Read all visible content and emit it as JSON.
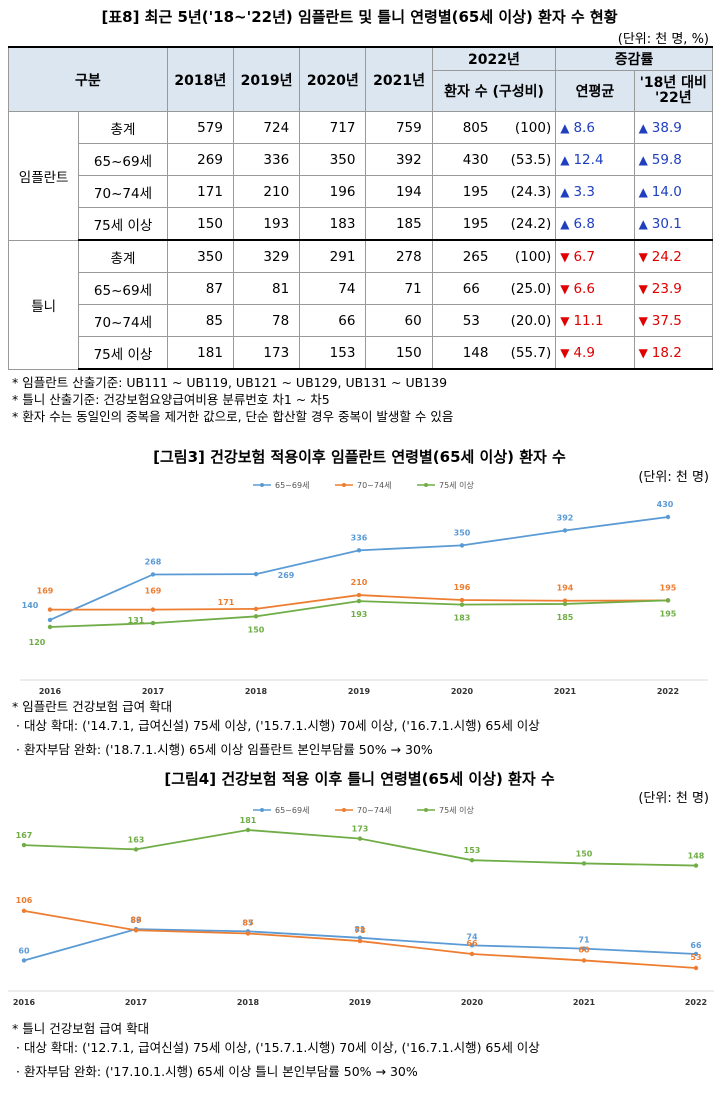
{
  "table": {
    "title": "[표8] 최근 5년('18~'22년) 임플란트 및 틀니 연령별(65세 이상) 환자 수 현황",
    "unit": "(단위: 천 명, %)",
    "headers": {
      "category": "구분",
      "y2018": "2018년",
      "y2019": "2019년",
      "y2020": "2020년",
      "y2021": "2021년",
      "y2022": "2022년",
      "patients": "환자 수 (구성비)",
      "change": "증감률",
      "annual": "연평균",
      "vs18": "'18년 대비 '22년"
    },
    "groups": [
      {
        "name": "임플란트",
        "rows": [
          {
            "label": "총계",
            "v2018": "579",
            "v2019": "724",
            "v2020": "717",
            "v2021": "759",
            "v2022": "805",
            "share": "(100)",
            "annual": "8.6",
            "vs18": "38.9",
            "dir": "up"
          },
          {
            "label": "65~69세",
            "v2018": "269",
            "v2019": "336",
            "v2020": "350",
            "v2021": "392",
            "v2022": "430",
            "share": "(53.5)",
            "annual": "12.4",
            "vs18": "59.8",
            "dir": "up"
          },
          {
            "label": "70~74세",
            "v2018": "171",
            "v2019": "210",
            "v2020": "196",
            "v2021": "194",
            "v2022": "195",
            "share": "(24.3)",
            "annual": "3.3",
            "vs18": "14.0",
            "dir": "up"
          },
          {
            "label": "75세 이상",
            "v2018": "150",
            "v2019": "193",
            "v2020": "183",
            "v2021": "185",
            "v2022": "195",
            "share": "(24.2)",
            "annual": "6.8",
            "vs18": "30.1",
            "dir": "up"
          }
        ]
      },
      {
        "name": "틀니",
        "rows": [
          {
            "label": "총계",
            "v2018": "350",
            "v2019": "329",
            "v2020": "291",
            "v2021": "278",
            "v2022": "265",
            "share": "(100)",
            "annual": "6.7",
            "vs18": "24.2",
            "dir": "down"
          },
          {
            "label": "65~69세",
            "v2018": "87",
            "v2019": "81",
            "v2020": "74",
            "v2021": "71",
            "v2022": "66",
            "share": "(25.0)",
            "annual": "6.6",
            "vs18": "23.9",
            "dir": "down"
          },
          {
            "label": "70~74세",
            "v2018": "85",
            "v2019": "78",
            "v2020": "66",
            "v2021": "60",
            "v2022": "53",
            "share": "(20.0)",
            "annual": "11.1",
            "vs18": "37.5",
            "dir": "down"
          },
          {
            "label": "75세 이상",
            "v2018": "181",
            "v2019": "173",
            "v2020": "153",
            "v2021": "150",
            "v2022": "148",
            "share": "(55.7)",
            "annual": "4.9",
            "vs18": "18.2",
            "dir": "down"
          }
        ]
      }
    ],
    "notes": [
      "* 임플란트 산출기준: UB111 ~ UB119, UB121 ~ UB129, UB131 ~ UB139",
      "* 틀니 산출기준: 건강보험요양급여비용 분류번호 차1 ~ 차5",
      "* 환자 수는 동일인의 중복을 제거한 값으로, 단순 합산할 경우 중복이 발생할 수 있음"
    ]
  },
  "figure3": {
    "title": "[그림3] 건강보험 적용이후 임플란트 연령별(65세 이상) 환자 수",
    "unit": "(단위: 천 명)",
    "notes": [
      "* 임플란트 건강보험 급여 확대",
      "· 대상 확대: ('14.7.1, 급여신설) 75세 이상, ('15.7.1.시행) 70세 이상, ('16.7.1.시행) 65세 이상",
      "· 환자부담 완화: ('18.7.1.시행) 65세 이상 임플란트 본인부담률 50% → 30%"
    ]
  },
  "figure4": {
    "title": "[그림4] 건강보험 적용 이후 틀니 연령별(65세 이상) 환자 수",
    "unit": "(단위: 천 명)",
    "notes": [
      "* 틀니 건강보험 급여 확대",
      "· 대상 확대: ('12.7.1, 급여신설) 75세 이상, ('15.7.1.시행) 70세 이상, ('16.7.1.시행) 65세 이상",
      "· 환자부담 완화: ('17.10.1.시행) 65세 이상 틀니 본인부담률 50% → 30%"
    ]
  },
  "colors": {
    "series1": "#5b9bd5",
    "series2": "#ed7d31",
    "series3": "#70ad47",
    "up": "#1f3fbf",
    "down": "#e00000",
    "header": "#dce6f1"
  },
  "chart_data": [
    {
      "type": "line",
      "x": [
        "2016",
        "2017",
        "2018",
        "2019",
        "2020",
        "2021",
        "2022"
      ],
      "series": [
        {
          "name": "65~69세",
          "values": [
            140,
            268,
            269,
            336,
            350,
            392,
            430
          ]
        },
        {
          "name": "70~74세",
          "values": [
            169,
            169,
            171,
            210,
            196,
            194,
            195
          ]
        },
        {
          "name": "75세 이상",
          "values": [
            120,
            131,
            150,
            193,
            183,
            185,
            195
          ]
        }
      ],
      "grid": false,
      "legend": "top"
    },
    {
      "type": "line",
      "x": [
        "2016",
        "2017",
        "2018",
        "2019",
        "2020",
        "2021",
        "2022"
      ],
      "series": [
        {
          "name": "65~69세",
          "values": [
            60,
            89,
            87,
            81,
            74,
            71,
            66
          ]
        },
        {
          "name": "70~74세",
          "values": [
            106,
            88,
            85,
            78,
            66,
            60,
            53
          ]
        },
        {
          "name": "75세 이상",
          "values": [
            167,
            163,
            181,
            173,
            153,
            150,
            148
          ]
        }
      ],
      "grid": false,
      "legend": "top"
    }
  ]
}
